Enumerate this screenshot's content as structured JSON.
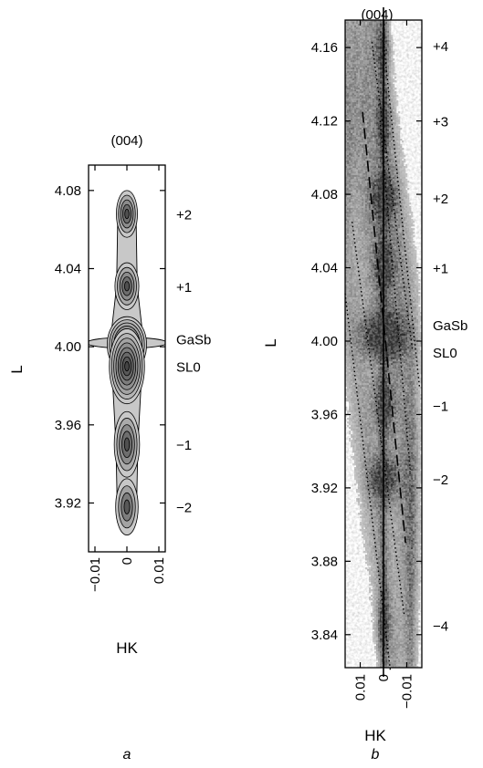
{
  "chart_data": [
    {
      "type": "heatmap",
      "panel_label": "a",
      "title": "(004)",
      "xlabel": "HK",
      "ylabel": "L",
      "xlim": [
        -0.012,
        0.012
      ],
      "ylim": [
        3.895,
        4.093
      ],
      "x_ticks": [
        -0.01,
        0,
        0.01
      ],
      "x_tick_labels": [
        "−0.01",
        "0",
        "0.01"
      ],
      "y_ticks": [
        3.92,
        3.96,
        4.0,
        4.04,
        4.08
      ],
      "y_tick_labels": [
        "3.92",
        "3.96",
        "4.00",
        "4.04",
        "4.08"
      ],
      "style": "contour",
      "peaks": [
        {
          "x": 0.0,
          "y": 4.068,
          "amp": 0.55,
          "sx": 0.0015,
          "sy": 0.005
        },
        {
          "x": 0.0,
          "y": 4.031,
          "amp": 0.6,
          "sx": 0.0017,
          "sy": 0.005
        },
        {
          "x": 0.0,
          "y": 4.001,
          "amp": 1.0,
          "sx": 0.0028,
          "sy": 0.006
        },
        {
          "x": 0.0,
          "y": 3.99,
          "amp": 0.85,
          "sx": 0.0025,
          "sy": 0.008
        },
        {
          "x": 0.0,
          "y": 3.95,
          "amp": 0.55,
          "sx": 0.0018,
          "sy": 0.007
        },
        {
          "x": 0.0,
          "y": 3.918,
          "amp": 0.45,
          "sx": 0.0016,
          "sy": 0.006
        }
      ],
      "annotations": [
        {
          "y": 4.068,
          "text": "+2"
        },
        {
          "y": 4.031,
          "text": "+1"
        },
        {
          "y": 4.004,
          "text": "GaSb"
        },
        {
          "y": 3.99,
          "text": "SL0"
        },
        {
          "y": 3.95,
          "text": "−1"
        },
        {
          "y": 3.918,
          "text": "−2"
        }
      ]
    },
    {
      "type": "heatmap",
      "panel_label": "b",
      "title": "(004)",
      "xlabel": "HK",
      "ylabel": "L",
      "xlim": [
        0.0165,
        -0.0165
      ],
      "ylim": [
        3.822,
        4.175
      ],
      "x_ticks": [
        0.01,
        0,
        -0.01
      ],
      "x_tick_labels": [
        "0.01",
        "0",
        "−0.01"
      ],
      "y_ticks": [
        3.84,
        3.88,
        3.92,
        3.96,
        4.0,
        4.04,
        4.08,
        4.12,
        4.16
      ],
      "y_tick_labels": [
        "3.84",
        "3.88",
        "3.92",
        "3.96",
        "4.00",
        "4.04",
        "4.08",
        "4.12",
        "4.16"
      ],
      "style": "grayscale",
      "peaks": [
        {
          "x": 0.0,
          "y": 4.161,
          "amp": 0.5,
          "sx": 0.002,
          "sy": 0.01
        },
        {
          "x": 0.0,
          "y": 4.12,
          "amp": 0.5,
          "sx": 0.002,
          "sy": 0.01
        },
        {
          "x": 0.0,
          "y": 4.078,
          "amp": 0.8,
          "sx": 0.0035,
          "sy": 0.008
        },
        {
          "x": 0.0,
          "y": 4.04,
          "amp": 0.6,
          "sx": 0.003,
          "sy": 0.01
        },
        {
          "x": 0.0,
          "y": 4.003,
          "amp": 1.0,
          "sx": 0.006,
          "sy": 0.008
        },
        {
          "x": 0.0,
          "y": 3.965,
          "amp": 0.6,
          "sx": 0.003,
          "sy": 0.01
        },
        {
          "x": 0.0,
          "y": 3.925,
          "amp": 0.8,
          "sx": 0.004,
          "sy": 0.008
        },
        {
          "x": 0.0,
          "y": 3.845,
          "amp": 0.5,
          "sx": 0.002,
          "sy": 0.012
        }
      ],
      "streaks": [
        {
          "x1": 0.012,
          "y1": 4.13,
          "x2": -0.011,
          "y2": 3.9,
          "width": 0.0035,
          "amp": 0.45
        },
        {
          "x1": 0.005,
          "y1": 4.17,
          "x2": -0.012,
          "y2": 4.0,
          "width": 0.003,
          "amp": 0.45
        },
        {
          "x1": 0.016,
          "y1": 4.03,
          "x2": -0.004,
          "y2": 3.83,
          "width": 0.003,
          "amp": 0.4
        }
      ],
      "vertical_line": {
        "x": 0.0
      },
      "dashed_line": [
        {
          "x": 0.009,
          "y": 4.125
        },
        {
          "x": -0.0095,
          "y": 3.89
        }
      ],
      "dotted_lines": [
        [
          {
            "x": 0.005,
            "y": 4.163
          },
          {
            "x": -0.0125,
            "y": 3.995
          }
        ],
        [
          {
            "x": 0.0,
            "y": 4.163
          },
          {
            "x": -0.0155,
            "y": 3.975
          }
        ],
        [
          {
            "x": 0.0135,
            "y": 4.065
          },
          {
            "x": -0.009,
            "y": 3.85
          }
        ],
        [
          {
            "x": 0.0165,
            "y": 4.026
          },
          {
            "x": -0.003,
            "y": 3.82
          }
        ],
        [
          {
            "x": 0.0015,
            "y": 4.12
          },
          {
            "x": -0.0115,
            "y": 3.93
          }
        ]
      ],
      "annotations": [
        {
          "y": 4.161,
          "text": "+4"
        },
        {
          "y": 4.12,
          "text": "+3"
        },
        {
          "y": 4.078,
          "text": "+2"
        },
        {
          "y": 4.04,
          "text": "+1"
        },
        {
          "y": 4.009,
          "text": "GaSb"
        },
        {
          "y": 3.994,
          "text": "SL0"
        },
        {
          "y": 3.965,
          "text": "−1"
        },
        {
          "y": 3.925,
          "text": "−2"
        },
        {
          "y": 3.845,
          "text": "−4"
        }
      ]
    }
  ]
}
